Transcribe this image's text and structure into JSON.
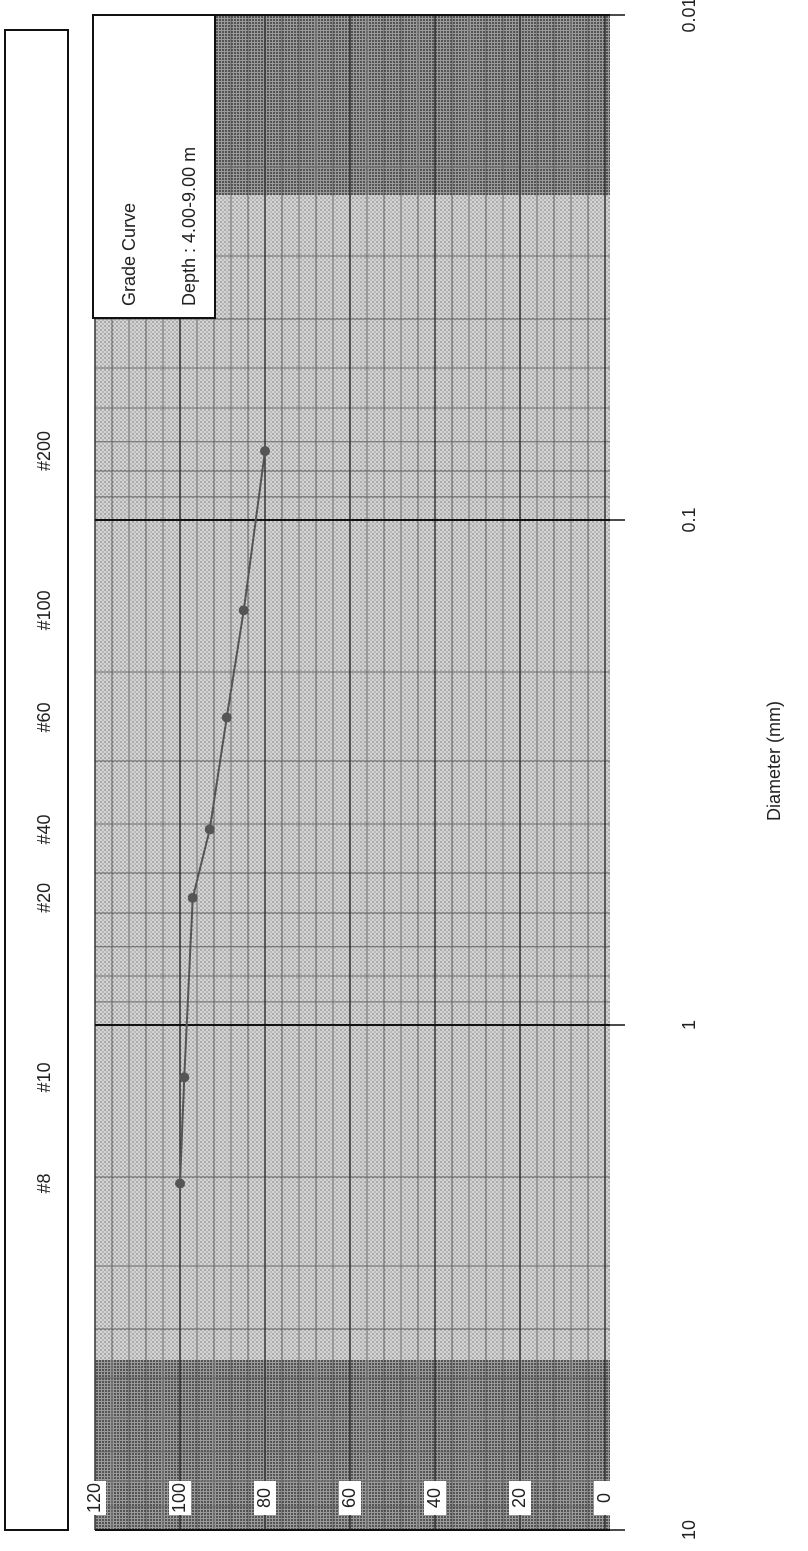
{
  "chart_data": {
    "type": "line",
    "title": "Grade Curve",
    "subtitle": "Depth : 4.00-9.00 m",
    "x_label": "Diameter (mm)",
    "x": [
      2.06,
      1.27,
      0.56,
      0.41,
      0.246,
      0.151,
      0.073
    ],
    "sieve_labels": [
      "#8",
      "#10",
      "#20",
      "#40",
      "#60",
      "#100",
      "#200"
    ],
    "series": [
      {
        "color": "#555555",
        "values": [
          100,
          99,
          97,
          93,
          89,
          85,
          80
        ]
      }
    ],
    "xlim": [
      10,
      0.01
    ],
    "xticks": [
      10,
      1,
      0.1,
      0.01
    ],
    "log_x": true,
    "ylim": [
      0,
      120
    ],
    "yticks": [
      0,
      20,
      40,
      60,
      80,
      100,
      120
    ],
    "grid": true
  }
}
